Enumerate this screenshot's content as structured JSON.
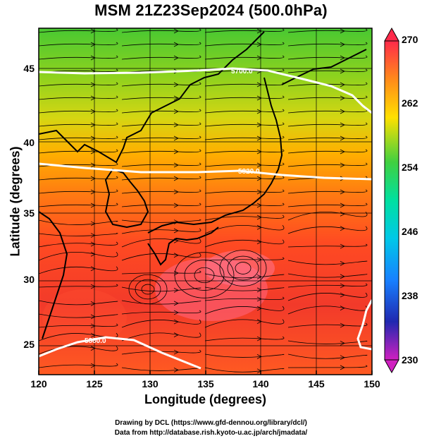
{
  "title": "MSM 21Z23Sep2024 (500.0hPa)",
  "xlabel": "Longitude (degrees)",
  "ylabel": "Latitude  (degrees)",
  "credit_line1": "Drawing by DCL (https://www.gfd-dennou.org/library/dcl/)",
  "credit_line2": "Data from http://database.rish.kyoto-u.ac.jp/arch/jmadata/",
  "chart_data": {
    "type": "heatmap",
    "field": "temperature with wind streamlines",
    "x_range": [
      120,
      150
    ],
    "y_range": [
      22.4,
      47.6
    ],
    "x_ticks": [
      120,
      125,
      130,
      135,
      140,
      145,
      150
    ],
    "y_ticks": [
      25,
      30,
      35,
      40,
      45
    ],
    "colorbar": {
      "ticks": [
        270,
        262,
        254,
        246,
        238,
        230
      ],
      "range": [
        230,
        270
      ],
      "colors": [
        "#ff2a6e",
        "#e8301e",
        "#ff6a1a",
        "#ffb000",
        "#c8e000",
        "#40d040",
        "#00e0a0",
        "#00c8e0",
        "#1880ff",
        "#2030c0",
        "#8030c0",
        "#d020c0"
      ]
    },
    "contours": [
      {
        "label": "5700.0",
        "lat_approx": 44.8
      },
      {
        "label": "5820.0",
        "lat_approx": 37.8
      },
      {
        "label": "5880.0",
        "lat_approx": 24.8
      }
    ]
  }
}
